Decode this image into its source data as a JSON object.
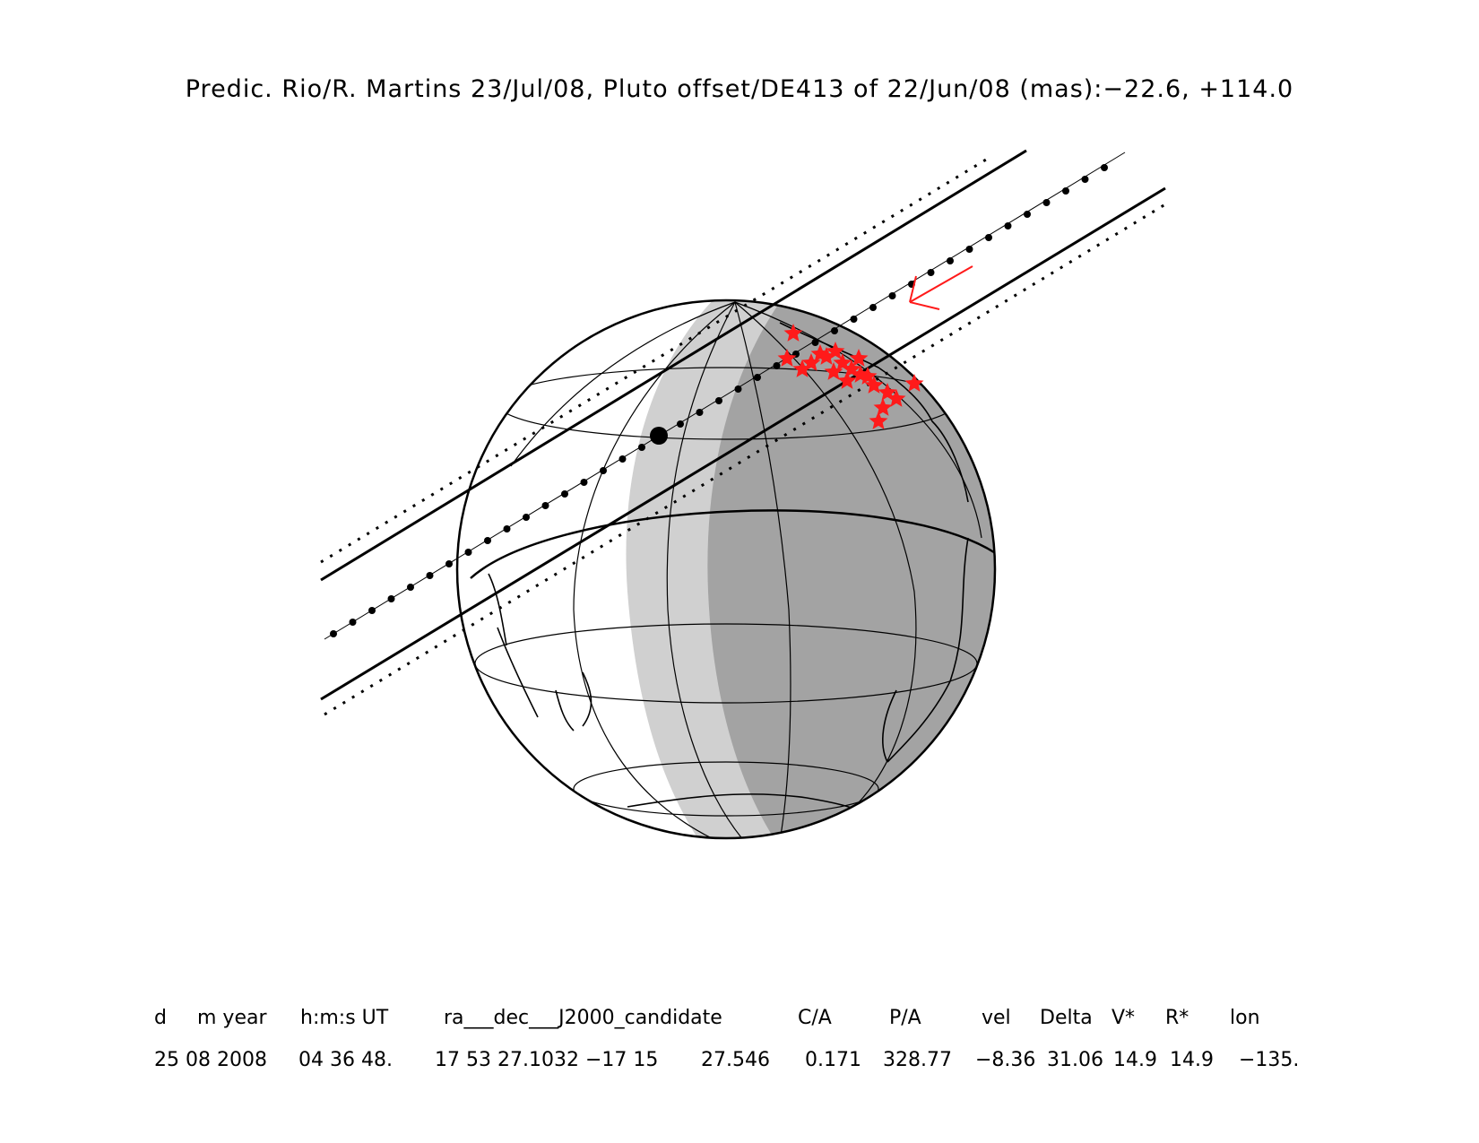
{
  "title": "Predic. Rio/R. Martins 23/Jul/08, Pluto offset/DE413 of 22/Jun/08 (mas):−22.6, +114.0",
  "table": {
    "headers": [
      "d",
      "m year",
      "h:m:s UT",
      "ra___dec___J2000_candidate",
      "C/A",
      "P/A",
      "vel",
      "Delta",
      "V*",
      "R*",
      "lon"
    ],
    "values": [
      "25 08 2008",
      "04 36 48.",
      "17 53 27.1032 −17 15",
      "27.546",
      "0.171",
      "328.77",
      "−8.36",
      "31.06",
      "14.9",
      "14.9",
      "−135."
    ]
  },
  "map": {
    "projection": "orthographic",
    "center_lon": -135,
    "event": "occultation shadow path",
    "features": [
      "central-line-dots",
      "shadow-limit-lines",
      "dotted-uncertainty-lines",
      "night-side-shading",
      "twilight-shading",
      "observer-stars",
      "motion-arrow",
      "closest-approach-point"
    ],
    "colors": {
      "stars": "#ff1a1a",
      "arrow": "#ff1a1a",
      "night": "#a3a3a3",
      "twilight": "#d0d0d0",
      "lines": "#000000"
    }
  }
}
